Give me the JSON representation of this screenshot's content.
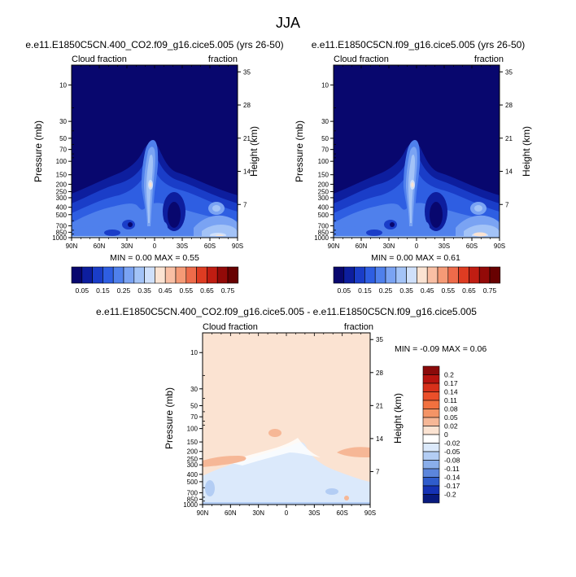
{
  "figure": {
    "title": "JJA"
  },
  "panels": [
    {
      "title": "e.e11.E1850C5CN.400_CO2.f09_g16.cice5.005 (yrs 26-50)",
      "left_label": "Cloud fraction",
      "right_label": "fraction",
      "ylabel": "Pressure (mb)",
      "ylabel_right": "Height (km)",
      "stats": "MIN =   0.00   MAX =   0.55"
    },
    {
      "title": "e.e11.E1850C5CN.f09_g16.cice5.005 (yrs 26-50)",
      "left_label": "Cloud fraction",
      "right_label": "fraction",
      "ylabel": "Pressure (mb)",
      "ylabel_right": "Height (km)",
      "stats": "MIN =   0.00   MAX =   0.61"
    },
    {
      "title": "e.e11.E1850C5CN.400_CO2.f09_g16.cice5.005 - e.e11.E1850C5CN.f09_g16.cice5.005",
      "left_label": "Cloud fraction",
      "right_label": "fraction",
      "ylabel": "Pressure (mb)",
      "ylabel_right": "Height (km)",
      "stats": "MIN =  -0.09   MAX =   0.06"
    }
  ],
  "chart_data": [
    {
      "type": "heatmap",
      "subtype": "latitude-pressure contour",
      "title": "e.e11.E1850C5CN.400_CO2.f09_g16.cice5.005 (yrs 26-50)",
      "x_ticks": [
        "90N",
        "60N",
        "30N",
        "0",
        "30S",
        "60S",
        "90S"
      ],
      "x_values": [
        90,
        60,
        30,
        0,
        -30,
        -60,
        -90
      ],
      "y_ticks": [
        "10",
        "30",
        "50",
        "70",
        "100",
        "150",
        "200",
        "250",
        "300",
        "400",
        "500",
        "700",
        "850",
        "1000"
      ],
      "y_values": [
        10,
        30,
        50,
        70,
        100,
        150,
        200,
        250,
        300,
        400,
        500,
        700,
        850,
        1000
      ],
      "y_right_ticks": [
        "35",
        "28",
        "21",
        "14",
        "7"
      ],
      "y_right_values": [
        35,
        28,
        21,
        14,
        7
      ],
      "ylim": [
        1000,
        5
      ],
      "min": 0.0,
      "max": 0.55,
      "colorbar_ticks": [
        "0.05",
        "0.15",
        "0.25",
        "0.35",
        "0.45",
        "0.55",
        "0.65",
        "0.75"
      ],
      "levels": [
        0.05,
        0.1,
        0.15,
        0.2,
        0.25,
        0.3,
        0.35,
        0.4,
        0.45,
        0.5,
        0.55,
        0.6,
        0.65,
        0.7,
        0.75
      ],
      "colors": [
        "#08076e",
        "#0d1e9e",
        "#1a3dc8",
        "#2e5ee2",
        "#4f80ec",
        "#7aa3f3",
        "#a3c3f7",
        "#cfe0fb",
        "#fbe3d2",
        "#f9bfa4",
        "#f59a76",
        "#ee6b4a",
        "#de3c22",
        "#c01d12",
        "#930a08",
        "#680101"
      ]
    },
    {
      "type": "heatmap",
      "subtype": "latitude-pressure contour",
      "title": "e.e11.E1850C5CN.f09_g16.cice5.005 (yrs 26-50)",
      "x_ticks": [
        "90N",
        "60N",
        "30N",
        "0",
        "30S",
        "60S",
        "90S"
      ],
      "x_values": [
        90,
        60,
        30,
        0,
        -30,
        -60,
        -90
      ],
      "y_ticks": [
        "10",
        "30",
        "50",
        "70",
        "100",
        "150",
        "200",
        "250",
        "300",
        "400",
        "500",
        "700",
        "850",
        "1000"
      ],
      "y_values": [
        10,
        30,
        50,
        70,
        100,
        150,
        200,
        250,
        300,
        400,
        500,
        700,
        850,
        1000
      ],
      "y_right_ticks": [
        "35",
        "28",
        "21",
        "14",
        "7"
      ],
      "y_right_values": [
        35,
        28,
        21,
        14,
        7
      ],
      "ylim": [
        1000,
        5
      ],
      "min": 0.0,
      "max": 0.61,
      "colorbar_ticks": [
        "0.05",
        "0.15",
        "0.25",
        "0.35",
        "0.45",
        "0.55",
        "0.65",
        "0.75"
      ],
      "levels": [
        0.05,
        0.1,
        0.15,
        0.2,
        0.25,
        0.3,
        0.35,
        0.4,
        0.45,
        0.5,
        0.55,
        0.6,
        0.65,
        0.7,
        0.75
      ],
      "colors": [
        "#08076e",
        "#0d1e9e",
        "#1a3dc8",
        "#2e5ee2",
        "#4f80ec",
        "#7aa3f3",
        "#a3c3f7",
        "#cfe0fb",
        "#fbe3d2",
        "#f9bfa4",
        "#f59a76",
        "#ee6b4a",
        "#de3c22",
        "#c01d12",
        "#930a08",
        "#680101"
      ]
    },
    {
      "type": "heatmap",
      "subtype": "latitude-pressure contour (difference)",
      "title": "e.e11.E1850C5CN.400_CO2.f09_g16.cice5.005 - e.e11.E1850C5CN.f09_g16.cice5.005",
      "x_ticks": [
        "90N",
        "60N",
        "30N",
        "0",
        "30S",
        "60S",
        "90S"
      ],
      "x_values": [
        90,
        60,
        30,
        0,
        -30,
        -60,
        -90
      ],
      "y_ticks": [
        "10",
        "30",
        "50",
        "70",
        "100",
        "150",
        "200",
        "250",
        "300",
        "400",
        "500",
        "700",
        "850",
        "1000"
      ],
      "y_values": [
        10,
        30,
        50,
        70,
        100,
        150,
        200,
        250,
        300,
        400,
        500,
        700,
        850,
        1000
      ],
      "y_right_ticks": [
        "35",
        "28",
        "21",
        "14",
        "7"
      ],
      "y_right_values": [
        35,
        28,
        21,
        14,
        7
      ],
      "ylim": [
        1000,
        5
      ],
      "min": -0.09,
      "max": 0.06,
      "colorbar_ticks": [
        "0.2",
        "0.17",
        "0.14",
        "0.11",
        "0.08",
        "0.05",
        "0.02",
        "0",
        "-0.02",
        "-0.05",
        "-0.08",
        "-0.11",
        "-0.14",
        "-0.17",
        "-0.2"
      ],
      "colors": [
        "#8b0a0a",
        "#b8140f",
        "#d8301a",
        "#ea4f2a",
        "#f2713f",
        "#f49466",
        "#f6b796",
        "#fbe3d2",
        "#ffffff",
        "#dbe9fb",
        "#b3cdf4",
        "#8aaeea",
        "#5c86dc",
        "#2f5ccc",
        "#1532b4",
        "#081a7e"
      ]
    }
  ]
}
